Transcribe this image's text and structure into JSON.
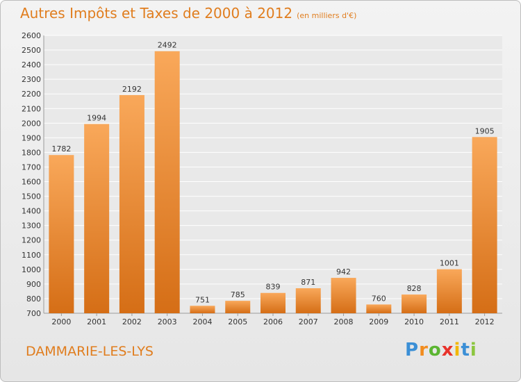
{
  "header": {
    "title": "Autres Impôts et Taxes de 2000 à 2012",
    "unit": "(en milliers d'€)"
  },
  "footer": {
    "city": "DAMMARIE-LES-LYS",
    "logo_letters": [
      "P",
      "r",
      "o",
      "x",
      "i",
      "t",
      "i"
    ],
    "logo_colors": [
      "#3b8fd6",
      "#f28c1e",
      "#5bb531",
      "#e8322b",
      "#f2b705",
      "#3b8fd6",
      "#8cc63f"
    ]
  },
  "colors": {
    "accent": "#e07d1e",
    "bar_top": "#f9a85a",
    "bar_bottom": "#d56e16",
    "grid": "#ffffff"
  },
  "chart_data": {
    "type": "bar",
    "categories": [
      "2000",
      "2001",
      "2002",
      "2003",
      "2004",
      "2005",
      "2006",
      "2007",
      "2008",
      "2009",
      "2010",
      "2011",
      "2012"
    ],
    "values": [
      1782,
      1994,
      2192,
      2492,
      751,
      785,
      839,
      871,
      942,
      760,
      828,
      1001,
      1905
    ],
    "data_labels": [
      "1782",
      "1994",
      "2192",
      "2492",
      "751",
      "785",
      "839",
      "871",
      "942",
      "760",
      "828",
      "1001",
      "1905"
    ],
    "ylim": [
      700,
      2600
    ],
    "yticks": [
      700,
      800,
      900,
      1000,
      1100,
      1200,
      1300,
      1400,
      1500,
      1600,
      1700,
      1800,
      1900,
      2000,
      2100,
      2200,
      2300,
      2400,
      2500,
      2600
    ],
    "grid": true,
    "xlabel": "",
    "ylabel": ""
  }
}
